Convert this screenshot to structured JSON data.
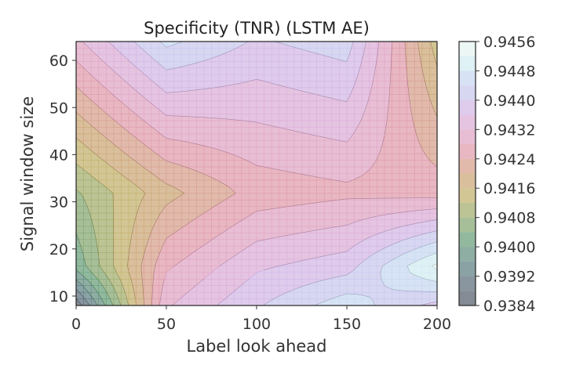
{
  "chart_data": {
    "type": "heatmap",
    "subtype": "filled-contour",
    "title": "Specificity (TNR) (LSTM AE)",
    "xlabel": "Label look ahead",
    "ylabel": "Signal window size",
    "x": [
      0,
      50,
      100,
      150,
      200
    ],
    "y": [
      8,
      16,
      32,
      64
    ],
    "z": [
      [
        0.9385,
        0.94315,
        0.94395,
        0.94465,
        0.94385
      ],
      [
        0.9401,
        0.94275,
        0.94355,
        0.94385,
        0.94535
      ],
      [
        0.94075,
        0.94185,
        0.94255,
        0.9427,
        0.9426
      ],
      [
        0.9431,
        0.9445,
        0.94395,
        0.9442,
        0.9414
      ]
    ],
    "xlim": [
      0,
      200
    ],
    "ylim": [
      8,
      64
    ],
    "xticks": [
      "0",
      "50",
      "100",
      "150",
      "200"
    ],
    "yticks": [
      10,
      20,
      30,
      40,
      50,
      60
    ],
    "ytick_labels": [
      "10",
      "20",
      "30",
      "40",
      "50",
      "60"
    ],
    "levels": [
      0.9384,
      0.9388,
      0.9392,
      0.9396,
      0.94,
      0.9404,
      0.9408,
      0.9412,
      0.9416,
      0.942,
      0.9424,
      0.9428,
      0.9432,
      0.9436,
      0.944,
      0.9444,
      0.9448,
      0.9452,
      0.9456
    ],
    "colorbar_ticks": [
      "0.9456",
      "0.9448",
      "0.9440",
      "0.9432",
      "0.9424",
      "0.9416",
      "0.9408",
      "0.9400",
      "0.9392",
      "0.9384"
    ],
    "colormap": [
      "#2f3542",
      "#3a5060",
      "#3f6e6a",
      "#4a8a5e",
      "#7d9a50",
      "#b5a04e",
      "#c88f62",
      "#d8879a",
      "#d898c6",
      "#c9a8e0",
      "#b8c6ee",
      "#c8e8ee",
      "#ecf6f0"
    ],
    "fill_opacity": 0.6
  }
}
